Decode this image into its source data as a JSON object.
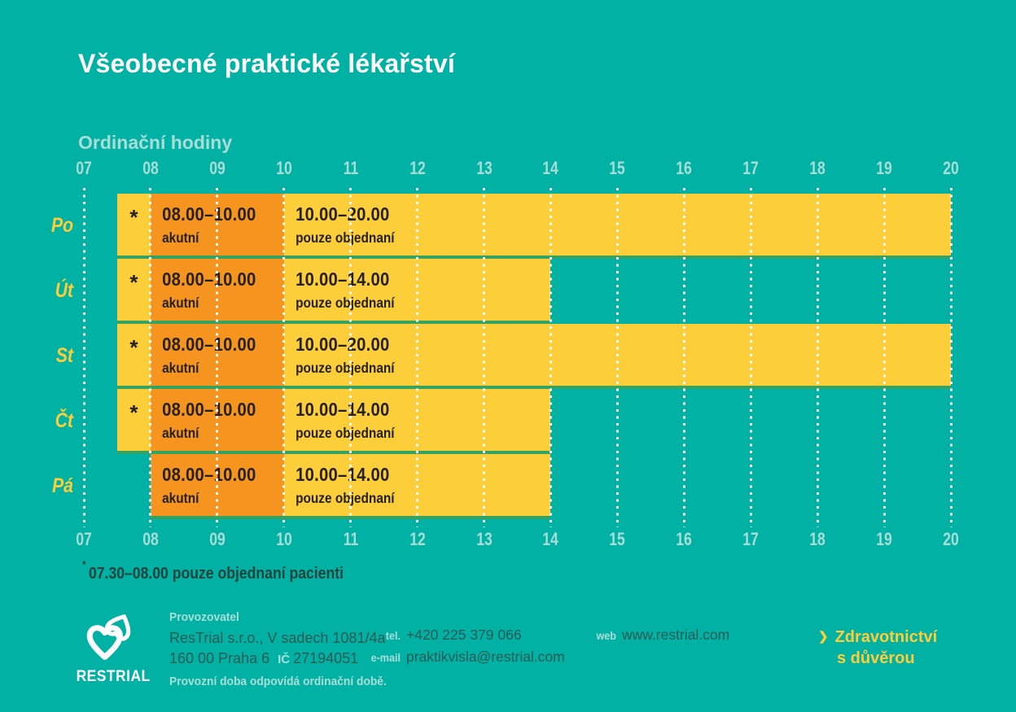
{
  "page": {
    "title": "Všeobecné praktické lékařství",
    "subtitle": "Ordinační hodiny",
    "footnote_marker": "*",
    "footnote_text": "07.30–08.00 pouze objednaní pacienti"
  },
  "colors": {
    "background": "#00b1a4",
    "yellow": "#fcce3a",
    "orange": "#f5941f",
    "separator_green": "#35a35f",
    "pale_aqua": "#a9ded8",
    "dark_text": "#2e5a54",
    "bar_text": "#26211d",
    "white": "#ffffff"
  },
  "chart_data": {
    "type": "gantt",
    "title": "Ordinační hodiny",
    "x_axis": {
      "min": 7,
      "max": 20,
      "ticks": [
        "07",
        "08",
        "09",
        "10",
        "11",
        "12",
        "13",
        "14",
        "15",
        "16",
        "17",
        "18",
        "19",
        "20"
      ],
      "grid": "dotted-white",
      "tick_labels_position": "top-and-bottom"
    },
    "rows": [
      {
        "day": "Po",
        "segments": [
          {
            "start": 7.5,
            "end": 8,
            "color": "yellow",
            "marker": "*"
          },
          {
            "start": 8,
            "end": 10,
            "color": "orange",
            "time": "08.00–10.00",
            "desc": "akutní"
          },
          {
            "start": 10,
            "end": 20,
            "color": "yellow",
            "time": "10.00–20.00",
            "desc": "pouze objednaní"
          }
        ]
      },
      {
        "day": "Út",
        "segments": [
          {
            "start": 7.5,
            "end": 8,
            "color": "yellow",
            "marker": "*"
          },
          {
            "start": 8,
            "end": 10,
            "color": "orange",
            "time": "08.00–10.00",
            "desc": "akutní"
          },
          {
            "start": 10,
            "end": 14,
            "color": "yellow",
            "time": "10.00–14.00",
            "desc": "pouze objednaní"
          }
        ]
      },
      {
        "day": "St",
        "segments": [
          {
            "start": 7.5,
            "end": 8,
            "color": "yellow",
            "marker": "*"
          },
          {
            "start": 8,
            "end": 10,
            "color": "orange",
            "time": "08.00–10.00",
            "desc": "akutní"
          },
          {
            "start": 10,
            "end": 20,
            "color": "yellow",
            "time": "10.00–20.00",
            "desc": "pouze objednaní"
          }
        ]
      },
      {
        "day": "Čt",
        "segments": [
          {
            "start": 7.5,
            "end": 8,
            "color": "yellow",
            "marker": "*"
          },
          {
            "start": 8,
            "end": 10,
            "color": "orange",
            "time": "08.00–10.00",
            "desc": "akutní"
          },
          {
            "start": 10,
            "end": 14,
            "color": "yellow",
            "time": "10.00–14.00",
            "desc": "pouze objednaní"
          }
        ]
      },
      {
        "day": "Pá",
        "segments": [
          {
            "start": 8,
            "end": 10,
            "color": "orange",
            "time": "08.00–10.00",
            "desc": "akutní"
          },
          {
            "start": 10,
            "end": 14,
            "color": "yellow",
            "time": "10.00–14.00",
            "desc": "pouze objednaní"
          }
        ]
      }
    ],
    "annotations": [
      "* 07.30–08.00 pouze objednaní pacienti"
    ]
  },
  "footer": {
    "logo_word": "RESTRIAL",
    "operator": {
      "label": "Provozovatel",
      "line1": "ResTrial s.r.o., V sadech 1081/4a",
      "city": "160 00 Praha 6",
      "ic_label": "IČ",
      "ic_value": "27194051",
      "note": "Provozní doba odpovídá ordinační době."
    },
    "contacts": {
      "tel_label": "tel.",
      "tel_value": "+420 225 379 066",
      "email_label": "e-mail",
      "email_value": "praktikvisla@restrial.com",
      "web_label": "web",
      "web_value": "www.restrial.com"
    },
    "tagline": {
      "chevron": "❯",
      "line1": "Zdravotnictví",
      "line2": "s důvěrou"
    }
  }
}
